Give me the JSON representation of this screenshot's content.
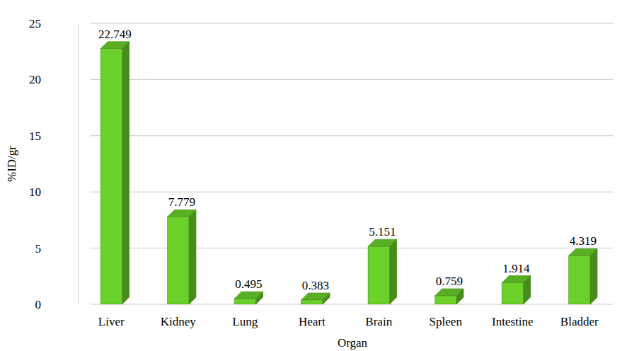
{
  "chart_data": {
    "type": "bar",
    "categories": [
      "Liver",
      "Kidney",
      "Lung",
      "Heart",
      "Brain",
      "Spleen",
      "Intestine",
      "Bladder"
    ],
    "values": [
      22.749,
      7.779,
      0.495,
      0.383,
      5.151,
      0.759,
      1.914,
      4.319
    ],
    "value_labels": [
      "22.749",
      "7.779",
      "0.495",
      "0.383",
      "5.151",
      "0.759",
      "1.914",
      "4.319"
    ],
    "color": "#6ad12a",
    "x_label": "Organ",
    "y_label": "%ID/gr",
    "ylim": [
      0,
      25
    ],
    "yticks": [
      0,
      5,
      10,
      15,
      20,
      25
    ],
    "grid": true,
    "data_labels": true
  }
}
